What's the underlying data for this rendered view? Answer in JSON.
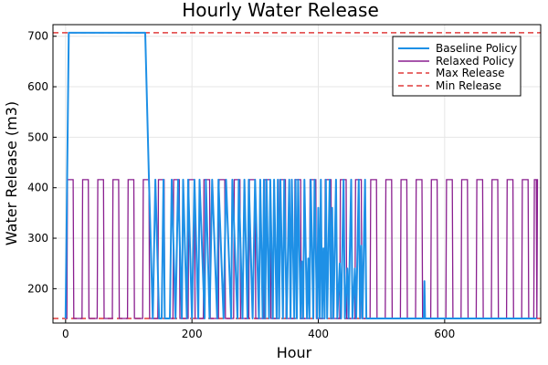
{
  "chart_data": {
    "type": "line",
    "title": "Hourly Water Release",
    "xlabel": "Hour",
    "ylabel": "Water Release (m3)",
    "xlim": [
      -20,
      752
    ],
    "ylim": [
      132,
      723
    ],
    "x_ticks": [
      0,
      200,
      400,
      600
    ],
    "y_ticks": [
      200,
      300,
      400,
      500,
      600,
      700
    ],
    "grid": true,
    "legend_position": "top-right",
    "series": [
      {
        "name": "Baseline Policy",
        "color": "#1e90e6",
        "x": [
          0,
          5,
          126,
          132,
          138,
          142,
          148,
          152,
          155,
          157,
          165,
          168,
          174,
          178,
          184,
          186,
          192,
          194,
          200,
          204,
          210,
          212,
          220,
          222,
          228,
          232,
          240,
          242,
          250,
          254,
          262,
          264,
          272,
          274,
          280,
          283,
          288,
          290,
          296,
          300,
          306,
          308,
          312,
          314,
          316,
          318,
          322,
          324,
          328,
          330,
          334,
          336,
          338,
          340,
          344,
          346,
          350,
          354,
          356,
          358,
          362,
          364,
          366,
          368,
          372,
          374,
          376,
          378,
          382,
          384,
          386,
          388,
          392,
          394,
          398,
          400,
          402,
          404,
          406,
          408,
          410,
          412,
          414,
          418,
          420,
          422,
          424,
          428,
          430,
          434,
          436,
          440,
          442,
          446,
          448,
          452,
          454,
          458,
          460,
          464,
          466,
          468,
          470,
          474,
          476,
          478,
          480,
          567,
          568,
          569,
          570,
          745
        ],
        "y": [
          141,
          707,
          707,
          416,
          141,
          416,
          141,
          141,
          416,
          141,
          141,
          416,
          141,
          416,
          141,
          416,
          141,
          416,
          141,
          416,
          141,
          416,
          141,
          416,
          141,
          416,
          141,
          416,
          141,
          416,
          141,
          416,
          141,
          416,
          141,
          416,
          141,
          416,
          141,
          416,
          141,
          416,
          141,
          416,
          141,
          416,
          141,
          416,
          141,
          416,
          141,
          416,
          141,
          416,
          141,
          416,
          141,
          416,
          141,
          416,
          141,
          416,
          141,
          416,
          141,
          254,
          141,
          416,
          141,
          260,
          141,
          416,
          141,
          416,
          141,
          360,
          141,
          416,
          141,
          280,
          141,
          416,
          141,
          416,
          141,
          360,
          141,
          416,
          141,
          250,
          141,
          416,
          141,
          240,
          141,
          416,
          141,
          240,
          141,
          416,
          141,
          285,
          141,
          416,
          141,
          141,
          141,
          141,
          215,
          141,
          141,
          141
        ]
      },
      {
        "name": "Relaxed Policy",
        "color": "#8a1f8f",
        "period": 24,
        "on_hours": 10,
        "x_start": 0,
        "x_end": 745,
        "high": 416,
        "low": 141
      },
      {
        "name": "Max Release",
        "color": "#e03c3c",
        "style": "dashed",
        "value": 707
      },
      {
        "name": "Min Release",
        "color": "#e03c3c",
        "style": "dashed",
        "value": 141
      }
    ]
  }
}
